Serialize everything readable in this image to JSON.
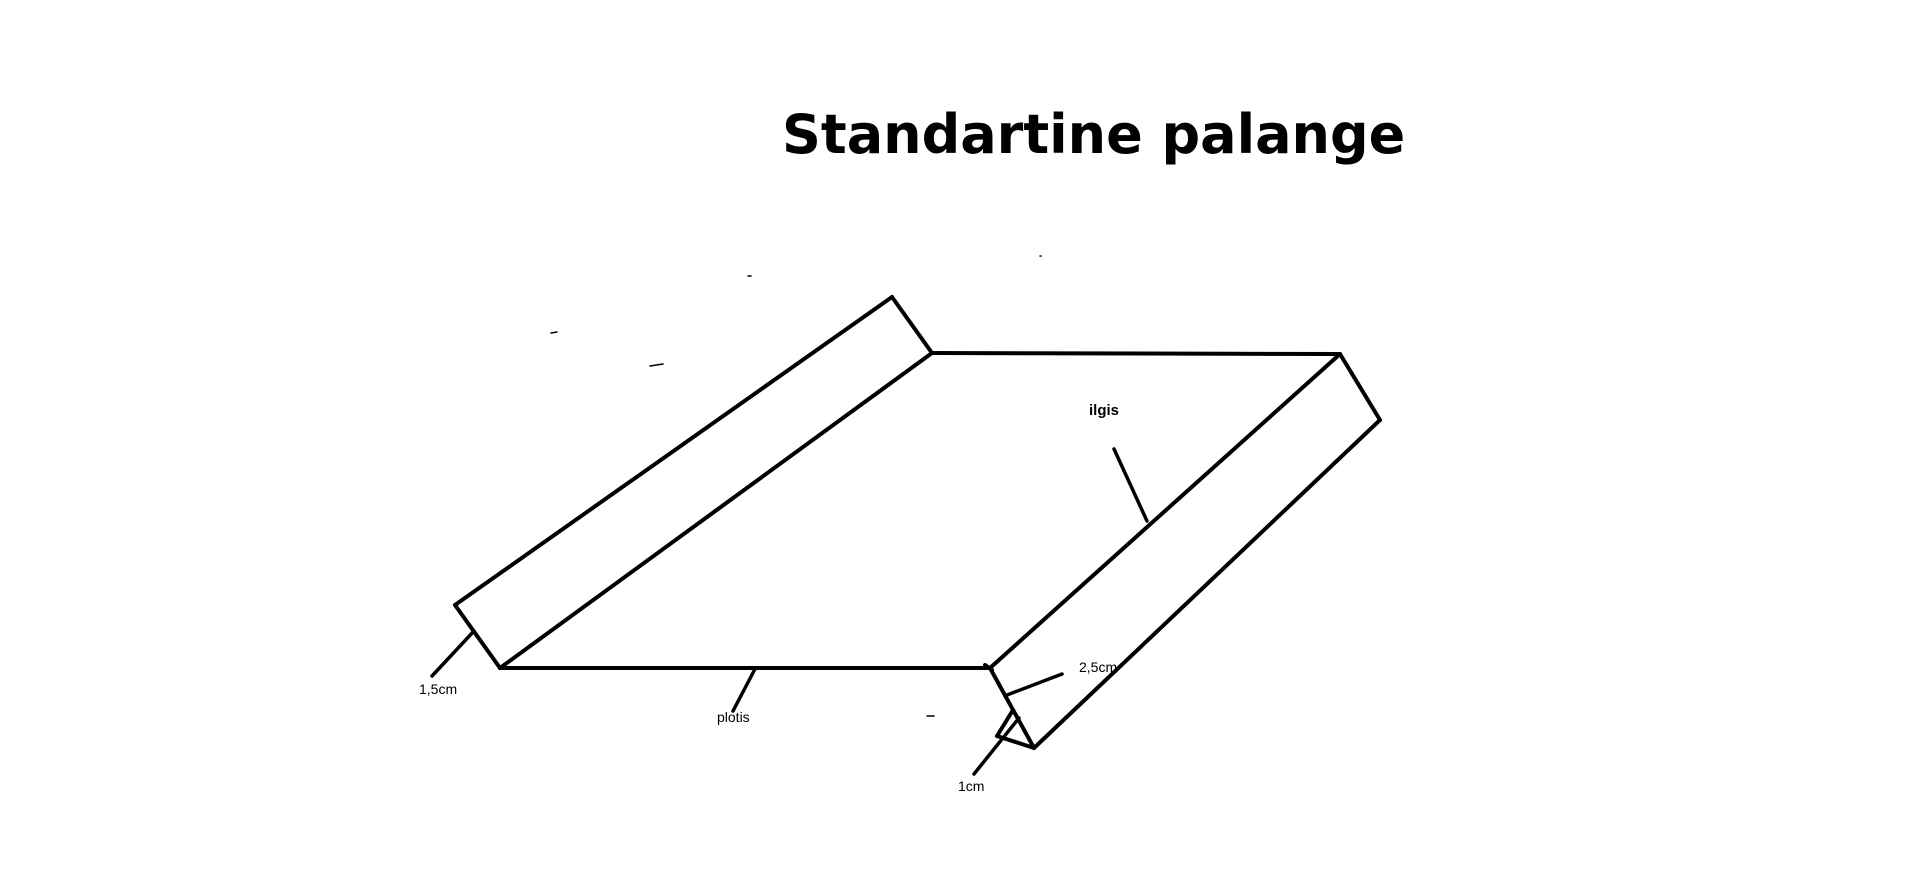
{
  "title": "Standartine palange",
  "labels": {
    "flange_left": "1,5cm",
    "width": "plotis",
    "length": "ilgis",
    "flange_right": "2,5cm",
    "hem": "1cm"
  },
  "colors": {
    "background": "#ffffff",
    "ink": "#000000"
  }
}
